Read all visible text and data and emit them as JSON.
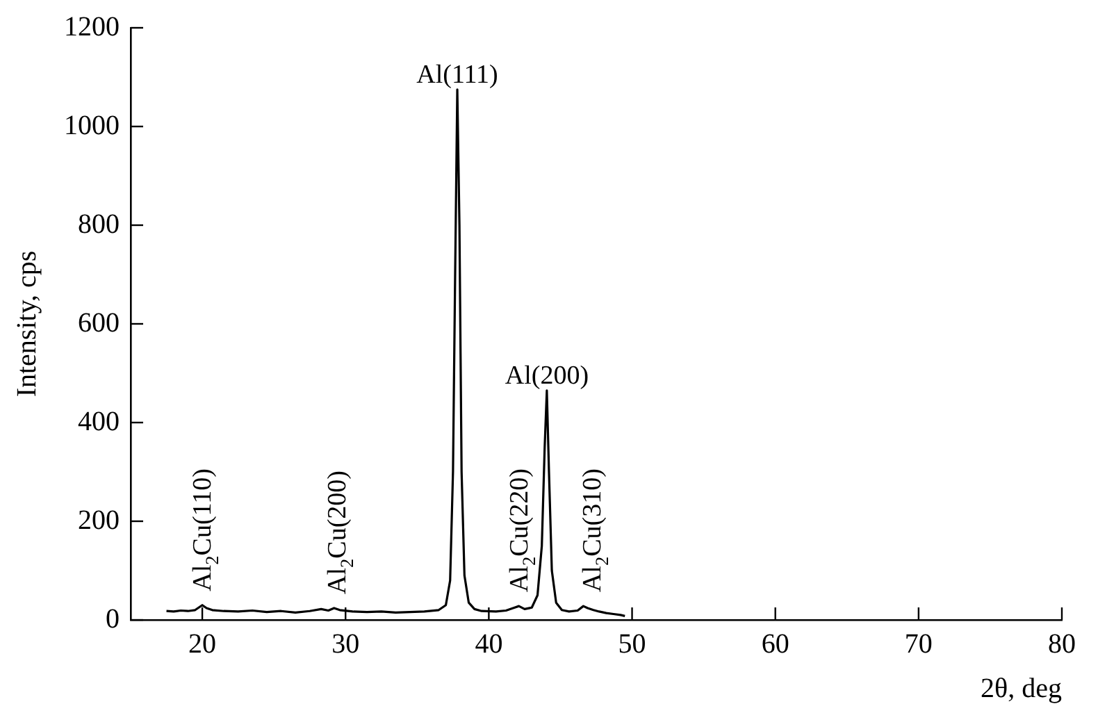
{
  "chart_data": {
    "type": "line",
    "xlabel": "2θ, deg",
    "ylabel": "Intensity, cps",
    "xlim": [
      15,
      80
    ],
    "xticks": [
      20,
      30,
      40,
      50,
      60,
      70,
      80
    ],
    "ylim": [
      0,
      1200
    ],
    "yticks": [
      0,
      200,
      400,
      600,
      800,
      1000,
      1200
    ],
    "grid": false,
    "legend": false,
    "marker": "none",
    "line_style": "solid",
    "series": [
      {
        "color": "#000000",
        "x": [
          17.5,
          18,
          18.5,
          19,
          19.5,
          20,
          20.3,
          20.7,
          21.5,
          22.5,
          23.5,
          24.5,
          25.5,
          26.5,
          27.5,
          28.3,
          28.8,
          29.2,
          29.6,
          30.5,
          31.5,
          32.5,
          33.5,
          34.5,
          35.5,
          36.5,
          37,
          37.3,
          37.5,
          37.65,
          37.8,
          37.95,
          38.1,
          38.3,
          38.6,
          39,
          39.5,
          40.5,
          41.2,
          41.8,
          42.1,
          42.5,
          43,
          43.4,
          43.7,
          43.9,
          44.05,
          44.2,
          44.4,
          44.7,
          45.1,
          45.6,
          46.2,
          46.6,
          46.9,
          47.3,
          47.7,
          48.2,
          48.7,
          49.2,
          49.5
        ],
        "values": [
          18,
          17,
          19,
          18,
          20,
          30,
          24,
          20,
          18,
          17,
          19,
          16,
          18,
          15,
          18,
          22,
          19,
          24,
          20,
          17,
          16,
          17,
          15,
          16,
          17,
          20,
          30,
          80,
          300,
          700,
          1075,
          800,
          300,
          90,
          35,
          22,
          18,
          17,
          19,
          25,
          28,
          22,
          25,
          50,
          150,
          350,
          465,
          300,
          100,
          35,
          20,
          17,
          19,
          28,
          24,
          20,
          17,
          14,
          12,
          10,
          8
        ]
      }
    ],
    "annotations": [
      {
        "text": "Al(111)",
        "x": 37.8,
        "y": 1075
      },
      {
        "text": "Al(200)",
        "x": 44.05,
        "y": 465
      },
      {
        "text": "Al$_{2}$Cu(110)",
        "x": 20,
        "y": 30
      },
      {
        "text": "Al$_{2}$Cu(200)",
        "x": 29.4,
        "y": 24
      },
      {
        "text": "Al$_{2}$Cu(220)",
        "x": 42.1,
        "y": 28
      },
      {
        "text": "Al$_{2}$Cu(310)",
        "x": 47.2,
        "y": 28
      }
    ]
  }
}
